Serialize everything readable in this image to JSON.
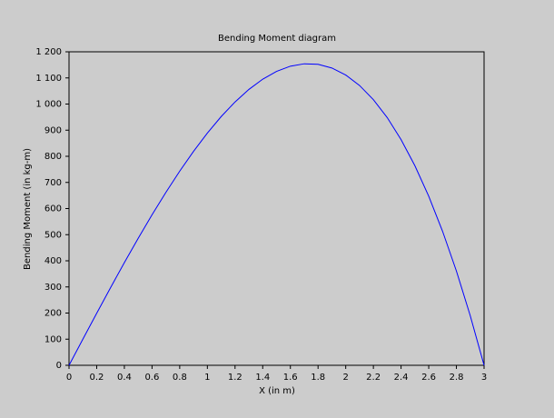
{
  "chart_data": {
    "type": "line",
    "title": "Bending Moment diagram",
    "x_label": "X (in m)",
    "y_label": "Bending Moment (in kg-m)",
    "x": [
      0,
      0.1,
      0.2,
      0.3,
      0.4,
      0.5,
      0.6,
      0.7,
      0.8,
      0.9,
      1.0,
      1.1,
      1.2,
      1.3,
      1.4,
      1.5,
      1.6,
      1.7,
      1.8,
      1.9,
      2.0,
      2.1,
      2.2,
      2.3,
      2.4,
      2.5,
      2.6,
      2.7,
      2.8,
      2.9,
      3.0
    ],
    "series": [
      {
        "color": "#0000ff",
        "values": [
          0,
          99.89,
          199.11,
          297,
          392.89,
          486.11,
          576,
          661.89,
          743.11,
          819,
          888.89,
          952.11,
          1008,
          1055.89,
          1095.11,
          1125,
          1144.89,
          1154.11,
          1152,
          1137.89,
          1111.11,
          1071,
          1016.89,
          948.11,
          864,
          763.89,
          647.11,
          513,
          360.89,
          190.11,
          0
        ]
      }
    ],
    "xlim": [
      0,
      3
    ],
    "ylim": [
      0,
      1200
    ],
    "xticks": [
      0,
      0.2,
      0.4,
      0.6,
      0.8,
      1,
      1.2,
      1.4,
      1.6,
      1.8,
      2,
      2.2,
      2.4,
      2.6,
      2.8,
      3
    ],
    "yticks": [
      0,
      100,
      200,
      300,
      400,
      500,
      600,
      700,
      800,
      900,
      {
        "value": 1000,
        "label": "1 000"
      },
      {
        "value": 1100,
        "label": "1 100"
      },
      {
        "value": 1200,
        "label": "1 200"
      }
    ],
    "grid": false
  }
}
